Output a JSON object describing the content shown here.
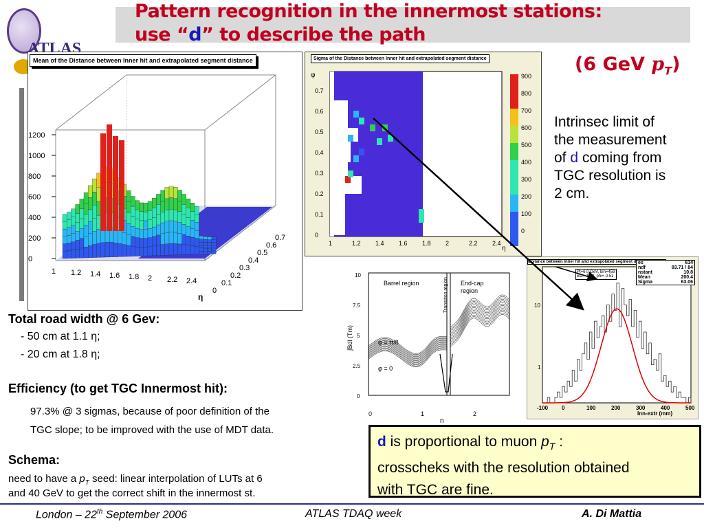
{
  "title": {
    "line1": "Pattern recognition in the innermost stations:",
    "line2_pre": "use “",
    "line2_d": "d",
    "line2_post": "” to describe the path",
    "subtitle_pre": "(6 GeV ",
    "subtitle_pt": "p",
    "subtitle_sub": "T",
    "subtitle_post": ")"
  },
  "logo": {
    "text": "ATLAS"
  },
  "lego_plot": {
    "title": "Mean of the Distance between Inner hit and extrapolated segment distance",
    "z_ticks": [
      "1200",
      "1000",
      "800",
      "600",
      "400",
      "200",
      "0"
    ],
    "x_ticks": [
      "1",
      "1.2",
      "1.4",
      "1.6",
      "1.8",
      "2",
      "2.2",
      "2.4"
    ],
    "x_label": "η",
    "y_ticks": [
      "0",
      "0.1",
      "0.2",
      "0.3",
      "0.4",
      "0.5",
      "0.6",
      "0.7"
    ]
  },
  "colz_plot": {
    "title": "Sigma of the Distance between Inner hit and extrapolated segment distance",
    "y_label": "φ",
    "y_ticks": [
      "0.7",
      "0.6",
      "0.5",
      "0.4",
      "0.3",
      "0.2",
      "0.1",
      "0"
    ],
    "x_ticks": [
      "1",
      "1.2",
      "1.4",
      "1.6",
      "1.8",
      "2",
      "2.2",
      "2.4"
    ],
    "x_label": "η",
    "z_ticks": [
      "900",
      "800",
      "700",
      "600",
      "500",
      "400",
      "300",
      "200",
      "100",
      "0"
    ]
  },
  "field_plot": {
    "y_label": "∫Bdl (Tm)",
    "y_ticks": [
      "10",
      "7.5",
      "5",
      "2.5",
      "0"
    ],
    "x_ticks": [
      "0",
      "1",
      "2"
    ],
    "x_label": "η",
    "region_barrel": "Barrel region",
    "region_transition": "Transition region",
    "region_endcap_1": "End-cap",
    "region_endcap_2": "region",
    "phi_1": "φ = π/8",
    "phi_2": "φ = 0"
  },
  "hist_plot": {
    "title": "Distance between Inner hit and extrapolated segment distances",
    "fit_info": "Pt=6.0 GeV, bin=459",
    "fit_info2": "eta= 1.48, phi= 0.51",
    "stats": [
      {
        "k": "es",
        "v": "614"
      },
      {
        "k": "ndf",
        "v": "83.71 / 84"
      },
      {
        "k": "nstant",
        "v": "10.8"
      },
      {
        "k": "Mean",
        "v": "200.4"
      },
      {
        "k": "Sigma",
        "v": "63.06"
      }
    ],
    "y_ticks": [
      "10",
      "1"
    ],
    "x_ticks": [
      "-100",
      "0",
      "100",
      "200",
      "300",
      "400",
      "500"
    ],
    "x_label": "Inn-extr (mm)",
    "counts": [
      0,
      0,
      1,
      0,
      0,
      1,
      2,
      1,
      3,
      2,
      4,
      3,
      6,
      4,
      8,
      6,
      9,
      11,
      8,
      13,
      10,
      15,
      12,
      14,
      16,
      13,
      18,
      15,
      20,
      17,
      22,
      14,
      21,
      18,
      16,
      19,
      14,
      17,
      12,
      15,
      10,
      13,
      9,
      11,
      7,
      8,
      6,
      9,
      4,
      5,
      3,
      4,
      2,
      3,
      1,
      2,
      1,
      1,
      0,
      1
    ],
    "fit_mean": 200.4,
    "fit_sigma": 63.06,
    "fit_constant": 10.8,
    "xlim": [
      -100,
      500
    ]
  },
  "text_limit": {
    "l1": "Intrinsec limit of",
    "l2": "the measurement",
    "l3_pre": "of ",
    "l3_d": "d",
    "l3_post": "  coming from",
    "l4": "TGC resolution is",
    "l5": "2 cm."
  },
  "road": {
    "heading": "Total road width @ 6 Gev:",
    "items": [
      "-  50 cm at 1.1 η;",
      "-  20 cm at 1.8 η;"
    ]
  },
  "efficiency": {
    "heading": "Efficiency (to get TGC Innermost hit):",
    "line1": "97.3% @ 3 sigmas, because of poor definition of the",
    "line2": "TGC slope; to be improved with the use of MDT data."
  },
  "schema": {
    "heading": "Schema:",
    "line1_pre": "need to have a ",
    "line1_pt": "p",
    "line1_sub": "T",
    "line1_post": " seed: linear interpolation of  LUTs at 6",
    "line2": "and 40 GeV to get the correct shift in the innermost st."
  },
  "note": {
    "d": "d",
    "l1_mid": " is proportional to muon ",
    "l1_pt": "p",
    "l1_sub": "T",
    "l1_post": " :",
    "l2": "crosscheks with the resolution obtained",
    "l3": "with TGC are fine."
  },
  "footer": {
    "left_pre": "London – 22",
    "left_sup": "th",
    "left_post": " September 2006",
    "center": "ATLAS TDAQ week",
    "right": "A. Di Mattia"
  },
  "colors": {
    "title": "#c0001f",
    "accent": "#1a1ab0",
    "note_bg": "#ffffcc",
    "footer_line": "#2a2a9a"
  }
}
